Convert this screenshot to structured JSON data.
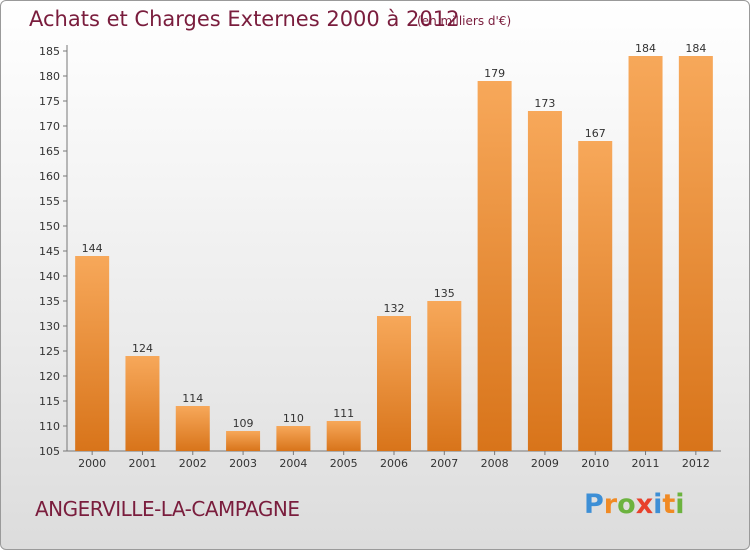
{
  "title": "Achats et Charges Externes 2000 à 2012",
  "subtitle": "(en milliers d'€)",
  "location": "ANGERVILLE-LA-CAMPAGNE",
  "logo": {
    "text": "Proxiti",
    "letters": [
      "P",
      "r",
      "o",
      "x",
      "i",
      "t",
      "i"
    ],
    "colors": [
      "#3d8fd6",
      "#f08a24",
      "#6cb33f",
      "#e8412c",
      "#3d8fd6",
      "#f08a24",
      "#6cb33f"
    ]
  },
  "colors": {
    "title": "#7a1d3d",
    "bar_light": "#f7a85a",
    "bar_dark": "#d8741a",
    "axis": "#777777"
  },
  "chart_data": {
    "type": "bar",
    "title": "Achats et Charges Externes 2000 à 2012",
    "subtitle": "(en milliers d'€)",
    "categories": [
      "2000",
      "2001",
      "2002",
      "2003",
      "2004",
      "2005",
      "2006",
      "2007",
      "2008",
      "2009",
      "2010",
      "2011",
      "2012"
    ],
    "values": [
      144,
      124,
      114,
      109,
      110,
      111,
      132,
      135,
      179,
      173,
      167,
      184,
      184
    ],
    "ylim": [
      105,
      185
    ],
    "yticks": [
      105,
      110,
      115,
      120,
      125,
      130,
      135,
      140,
      145,
      150,
      155,
      160,
      165,
      170,
      175,
      180,
      185
    ],
    "grid": false,
    "data_labels": true
  }
}
